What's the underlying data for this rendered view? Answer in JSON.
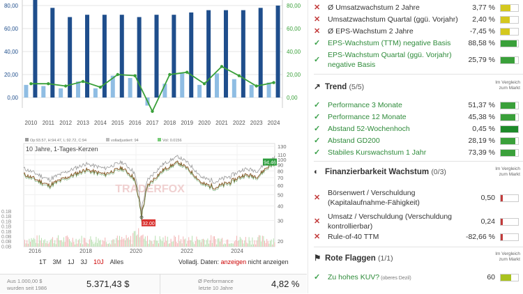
{
  "bar_chart": {
    "years": [
      "2010",
      "2011",
      "2012",
      "2013",
      "2014",
      "2015",
      "2016",
      "2017",
      "2018",
      "2019",
      "2020",
      "2021",
      "2022",
      "2023",
      "2024"
    ],
    "left_ticks": [
      "80,00",
      "60,00",
      "40,00",
      "20,00",
      "0,00"
    ],
    "right_ticks": [
      "80,00",
      "60,00",
      "40,00",
      "20,00",
      "0,00"
    ],
    "dark_values": [
      90,
      78,
      70,
      72,
      72,
      72,
      70,
      72,
      72,
      74,
      76,
      76,
      76,
      78,
      80
    ],
    "light_values": [
      11,
      10,
      8,
      14,
      8,
      19,
      17,
      -7,
      12,
      21,
      11,
      21,
      16,
      11,
      13
    ],
    "line_values": [
      12,
      12,
      10,
      14,
      9,
      20,
      19,
      -12,
      20,
      22,
      12,
      27,
      19,
      10,
      13
    ],
    "colors": {
      "dark": "#1f4e8c",
      "light": "#8fbde3",
      "line": "#3aa03a"
    }
  },
  "price_chart": {
    "legend": [
      {
        "swatch": "#999",
        "text": "Op:93.57, H:94.47, L:92.72, C:94"
      },
      {
        "swatch": "#bbb",
        "text": "volladjustiert: 94"
      },
      {
        "swatch": "#7c7",
        "text": "Vol: 0.0156"
      }
    ],
    "subtitle": "10 Jahre, 1-Tages-Kerzen",
    "right_ticks": [
      "130",
      "110",
      "100",
      "90",
      "80",
      "70",
      "60",
      "50",
      "40",
      "30",
      "20"
    ],
    "left_ticks": [
      "0.1B",
      "0.1B",
      "0.1B",
      "0.1B",
      "0.1B",
      "0.0B",
      "0.0B",
      "0.0B"
    ],
    "x_labels": [
      "2016",
      "2018",
      "2020",
      "2022",
      "2024"
    ],
    "last_price_label": "94.46",
    "low_label": "32.00",
    "watermark": "TRADERFOX"
  },
  "range_tabs": [
    "1T",
    "3M",
    "1J",
    "3J",
    "10J",
    "Alles"
  ],
  "active_range": "10J",
  "volladj": {
    "label": "Volladj. Daten:",
    "on": "anzeigen",
    "off": "nicht anzeigen"
  },
  "stats": {
    "left_label_1": "Aus 1.000,00 $",
    "left_label_2": "wurden seit 1986",
    "left_value": "5.371,43 $",
    "right_label_1": "Ø Performance",
    "right_label_2": "letzte 10 Jahre",
    "right_value": "4,82 %"
  },
  "criteria_top": [
    {
      "ok": false,
      "name": "Ø Umsatzwachstum 2 Jahre",
      "value": "3,77 %",
      "fill": 0.55,
      "color": "#d4c81f"
    },
    {
      "ok": false,
      "name": "Umsatzwachstum Quartal (ggü. Vorjahr)",
      "value": "2,40 %",
      "fill": 0.5,
      "color": "#d4c81f"
    },
    {
      "ok": false,
      "name": "Ø EPS-Wachstum 2 Jahre",
      "value": "-7,45 %",
      "fill": 0.5,
      "color": "#d4c81f"
    },
    {
      "ok": true,
      "name": "EPS-Wachstum (TTM) negative Basis",
      "value": "88,58 %",
      "fill": 0.9,
      "color": "#3aa03a"
    },
    {
      "ok": true,
      "name": "EPS-Wachstum Quartal (ggü. Vorjahr) negative Basis",
      "value": "25,79 %",
      "fill": 0.8,
      "color": "#3aa03a"
    }
  ],
  "trend": {
    "title": "Trend",
    "count": "(5/5)",
    "icon": "trend-line-icon",
    "compare": "Im Vergleich zum Markt",
    "items": [
      {
        "ok": true,
        "name": "Performance 3 Monate",
        "value": "51,37 %",
        "fill": 0.85,
        "color": "#3aa03a"
      },
      {
        "ok": true,
        "name": "Performance 12 Monate",
        "value": "45,38 %",
        "fill": 0.85,
        "color": "#3aa03a"
      },
      {
        "ok": true,
        "name": "Abstand 52-Wochenhoch",
        "value": "0,45 %",
        "fill": 1.0,
        "color": "#1e8a2a"
      },
      {
        "ok": true,
        "name": "Abstand GD200",
        "value": "28,19 %",
        "fill": 0.85,
        "color": "#3aa03a"
      },
      {
        "ok": true,
        "name": "Stabiles Kurswachstum 1 Jahr",
        "value": "73,39 %",
        "fill": 0.85,
        "color": "#3aa03a"
      }
    ]
  },
  "finanz": {
    "title": "Finanzierbarkeit Wachstum",
    "count": "(0/3)",
    "icon": "shield-icon",
    "compare": "Im Vergleich zum Markt",
    "items": [
      {
        "ok": false,
        "name": "Börsenwert / Verschuldung (Kapitalaufnahme-Fähigkeit)",
        "value": "0,50",
        "fill": 0.12,
        "color": "#c23a3a"
      },
      {
        "ok": false,
        "name": "Umsatz / Verschuldung (Verschuldung kontrollierbar)",
        "value": "0,24",
        "fill": 0.12,
        "color": "#c23a3a"
      },
      {
        "ok": false,
        "name": "Rule-of-40 TTM",
        "value": "-82,66 %",
        "fill": 0.12,
        "color": "#c23a3a"
      }
    ]
  },
  "flags": {
    "title": "Rote Flaggen",
    "count": "(1/1)",
    "icon": "flag-icon",
    "compare": "Im Vergleich zum Markt",
    "items": [
      {
        "ok": true,
        "name": "Zu hohes KUV?",
        "note": "(oberes Dezil)",
        "value": "60",
        "fill": 0.6,
        "color": "#a9c21f"
      }
    ]
  }
}
